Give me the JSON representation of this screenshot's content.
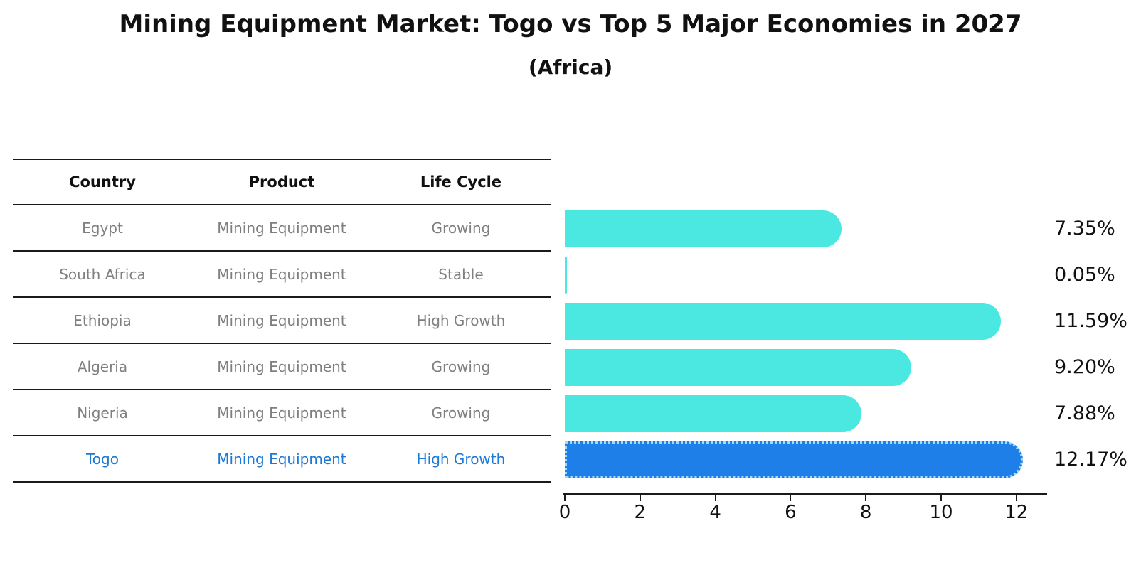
{
  "page": {
    "title": "Mining Equipment Market: Togo vs Top 5 Major Economies in 2027",
    "subtitle": "(Africa)"
  },
  "table": {
    "headers": [
      "Country",
      "Product",
      "Life Cycle"
    ],
    "rows": [
      {
        "country": "Egypt",
        "product": "Mining Equipment",
        "life_cycle": "Growing",
        "highlighted": false
      },
      {
        "country": "South Africa",
        "product": "Mining Equipment",
        "life_cycle": "Stable",
        "highlighted": false
      },
      {
        "country": "Ethiopia",
        "product": "Mining Equipment",
        "life_cycle": "High Growth",
        "highlighted": false
      },
      {
        "country": "Algeria",
        "product": "Mining Equipment",
        "life_cycle": "Growing",
        "highlighted": false
      },
      {
        "country": "Nigeria",
        "product": "Mining Equipment",
        "life_cycle": "Growing",
        "highlighted": false
      },
      {
        "country": "Togo",
        "product": "Mining Equipment",
        "life_cycle": "High Growth",
        "highlighted": true
      }
    ]
  },
  "chart_data": {
    "type": "bar",
    "orientation": "horizontal",
    "title": "Mining Equipment Market: Togo vs Top 5 Major Economies in 2027",
    "subtitle": "(Africa)",
    "categories": [
      "Egypt",
      "South Africa",
      "Ethiopia",
      "Algeria",
      "Nigeria",
      "Togo"
    ],
    "values": [
      7.35,
      0.05,
      11.59,
      9.2,
      7.88,
      12.17
    ],
    "value_labels": [
      "7.35%",
      "0.05%",
      "11.59%",
      "9.20%",
      "7.88%",
      "12.17%"
    ],
    "xticks": [
      0,
      2,
      4,
      6,
      8,
      10,
      12
    ],
    "xlim": [
      0,
      12.8
    ],
    "grid": false,
    "legend": false,
    "highlight_index": 5
  },
  "colors": {
    "bar": "#4BE8E1",
    "highlight_bar": "#1E7FE8",
    "highlight_text": "#1C79D6",
    "row_text": "#7F7F7F",
    "header_text": "#111111",
    "axis_line": "#1A1A1A"
  }
}
